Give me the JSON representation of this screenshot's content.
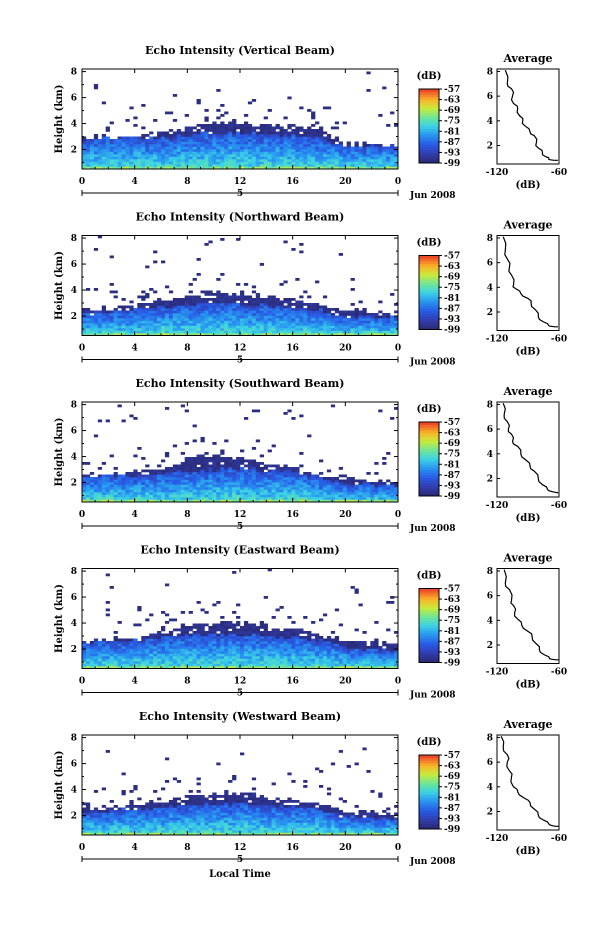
{
  "chart_data": [
    {
      "type": "heatmap",
      "title": "Echo Intensity (Vertical Beam)",
      "beam": "vertical",
      "ylabel": "Height (km)",
      "yticks": [
        "2",
        "4",
        "6",
        "8"
      ],
      "ylim": [
        0.5,
        8.2
      ],
      "xticks": [
        "0",
        "4",
        "8",
        "12",
        "16",
        "20",
        "0"
      ],
      "xlim": [
        0,
        24
      ],
      "date_tick": "5",
      "date_label": "Jun 2008",
      "colorbar": {
        "unit": "(dB)",
        "labels": [
          "-57",
          "-63",
          "-69",
          "-75",
          "-81",
          "-87",
          "-93",
          "-99"
        ],
        "range": [
          -99,
          -57
        ]
      },
      "layer": {
        "core_top_km": [
          2.8,
          3.0,
          3.1,
          3.0,
          3.2,
          3.4,
          3.5,
          3.3,
          3.2,
          3.0,
          2.4,
          2.3
        ],
        "upper_top_km": [
          2.9,
          3.0,
          3.1,
          3.3,
          3.8,
          4.2,
          4.1,
          4.0,
          3.9,
          3.7,
          2.6,
          2.4
        ],
        "hours": [
          0,
          2,
          4,
          6,
          8,
          10,
          12,
          14,
          16,
          18,
          20,
          24
        ]
      },
      "profile": {
        "title": "Average",
        "xlabel": "(dB)",
        "xticks": [
          "-120",
          "-60"
        ],
        "xlim": [
          -120,
          -60
        ],
        "yticks": [
          "2",
          "4",
          "6",
          "8"
        ],
        "ylim": [
          0.5,
          8.2
        ],
        "points": [
          [
            -112,
            8.1
          ],
          [
            -110,
            7.0
          ],
          [
            -106,
            6.6
          ],
          [
            -105,
            6.0
          ],
          [
            -104,
            5.4
          ],
          [
            -100,
            5.0
          ],
          [
            -98,
            4.4
          ],
          [
            -95,
            4.0
          ],
          [
            -93,
            3.6
          ],
          [
            -88,
            3.1
          ],
          [
            -84,
            2.8
          ],
          [
            -82,
            2.2
          ],
          [
            -80,
            1.8
          ],
          [
            -76,
            1.4
          ],
          [
            -73,
            1.1
          ],
          [
            -70,
            0.9
          ],
          [
            -65,
            0.8
          ],
          [
            -61,
            0.8
          ]
        ]
      }
    },
    {
      "type": "heatmap",
      "title": "Echo Intensity (Northward Beam)",
      "beam": "north",
      "ylabel": "Height (km)",
      "yticks": [
        "2",
        "4",
        "6",
        "8"
      ],
      "ylim": [
        0.5,
        8.2
      ],
      "xticks": [
        "0",
        "4",
        "8",
        "12",
        "16",
        "20",
        "0"
      ],
      "xlim": [
        0,
        24
      ],
      "date_tick": "5",
      "date_label": "Jun 2008",
      "colorbar": {
        "unit": "(dB)",
        "labels": [
          "-57",
          "-63",
          "-69",
          "-75",
          "-81",
          "-87",
          "-93",
          "-99"
        ],
        "range": [
          -99,
          -57
        ]
      },
      "layer": {
        "core_top_km": [
          2.3,
          2.4,
          2.6,
          2.8,
          3.0,
          3.1,
          3.0,
          2.9,
          2.8,
          2.6,
          2.1,
          2.0
        ],
        "upper_top_km": [
          2.5,
          2.6,
          2.9,
          3.3,
          3.7,
          3.9,
          3.8,
          3.6,
          3.4,
          3.0,
          2.6,
          2.4
        ],
        "hours": [
          0,
          2,
          4,
          6,
          8,
          10,
          12,
          14,
          16,
          18,
          20,
          24
        ]
      },
      "profile": {
        "title": "Average",
        "xlabel": "(dB)",
        "xticks": [
          "-120",
          "-60"
        ],
        "xlim": [
          -120,
          -60
        ],
        "yticks": [
          "2",
          "4",
          "6",
          "8"
        ],
        "ylim": [
          0.5,
          8.2
        ],
        "points": [
          [
            -114,
            8.1
          ],
          [
            -112,
            7.0
          ],
          [
            -110,
            6.3
          ],
          [
            -108,
            5.6
          ],
          [
            -106,
            5.0
          ],
          [
            -104,
            4.2
          ],
          [
            -102,
            3.9
          ],
          [
            -97,
            3.5
          ],
          [
            -90,
            3.1
          ],
          [
            -87,
            2.7
          ],
          [
            -83,
            2.2
          ],
          [
            -80,
            1.6
          ],
          [
            -75,
            1.2
          ],
          [
            -70,
            0.9
          ],
          [
            -64,
            0.8
          ],
          [
            -61,
            0.8
          ]
        ]
      }
    },
    {
      "type": "heatmap",
      "title": "Echo Intensity (Southward Beam)",
      "beam": "south",
      "ylabel": "Height (km)",
      "yticks": [
        "2",
        "4",
        "6",
        "8"
      ],
      "ylim": [
        0.5,
        8.2
      ],
      "xticks": [
        "0",
        "4",
        "8",
        "12",
        "16",
        "20",
        "0"
      ],
      "xlim": [
        0,
        24
      ],
      "date_tick": "5",
      "date_label": "Jun 2008",
      "colorbar": {
        "unit": "(dB)",
        "labels": [
          "-57",
          "-63",
          "-69",
          "-75",
          "-81",
          "-87",
          "-93",
          "-99"
        ],
        "range": [
          -99,
          -57
        ]
      },
      "layer": {
        "core_top_km": [
          2.5,
          2.6,
          2.7,
          2.8,
          3.0,
          3.1,
          3.2,
          3.0,
          2.9,
          2.6,
          2.0,
          1.9
        ],
        "upper_top_km": [
          2.6,
          2.7,
          2.9,
          3.0,
          4.0,
          4.2,
          4.0,
          3.5,
          3.2,
          2.8,
          2.4,
          2.2
        ],
        "hours": [
          0,
          2,
          4,
          6,
          8,
          10,
          12,
          14,
          16,
          18,
          20,
          24
        ]
      },
      "profile": {
        "title": "Average",
        "xlabel": "(dB)",
        "xticks": [
          "-120",
          "-60"
        ],
        "xlim": [
          -120,
          -60
        ],
        "yticks": [
          "2",
          "4",
          "6",
          "8"
        ],
        "ylim": [
          0.5,
          8.2
        ],
        "points": [
          [
            -114,
            8.1
          ],
          [
            -113,
            7.2
          ],
          [
            -110,
            6.6
          ],
          [
            -109,
            6.0
          ],
          [
            -106,
            5.6
          ],
          [
            -105,
            5.0
          ],
          [
            -100,
            4.6
          ],
          [
            -97,
            4.0
          ],
          [
            -92,
            3.5
          ],
          [
            -88,
            3.0
          ],
          [
            -84,
            2.6
          ],
          [
            -80,
            2.0
          ],
          [
            -76,
            1.5
          ],
          [
            -71,
            1.1
          ],
          [
            -65,
            0.9
          ],
          [
            -61,
            0.8
          ]
        ]
      }
    },
    {
      "type": "heatmap",
      "title": "Echo Intensity (Eastward Beam)",
      "beam": "east",
      "ylabel": "Height (km)",
      "yticks": [
        "2",
        "4",
        "6",
        "8"
      ],
      "ylim": [
        0.5,
        8.2
      ],
      "xticks": [
        "0",
        "4",
        "8",
        "12",
        "16",
        "20",
        "0"
      ],
      "xlim": [
        0,
        24
      ],
      "date_tick": "5",
      "date_label": "Jun 2008",
      "colorbar": {
        "unit": "(dB)",
        "labels": [
          "-57",
          "-63",
          "-69",
          "-75",
          "-81",
          "-87",
          "-93",
          "-99"
        ],
        "range": [
          -99,
          -57
        ]
      },
      "layer": {
        "core_top_km": [
          2.6,
          2.7,
          2.8,
          3.0,
          3.2,
          3.3,
          3.2,
          3.1,
          3.0,
          2.8,
          2.2,
          2.0
        ],
        "upper_top_km": [
          2.7,
          2.8,
          3.0,
          3.4,
          3.9,
          4.2,
          4.1,
          3.9,
          3.7,
          3.2,
          2.8,
          2.6
        ],
        "hours": [
          0,
          2,
          4,
          6,
          8,
          10,
          12,
          14,
          16,
          18,
          20,
          24
        ]
      },
      "profile": {
        "title": "Average",
        "xlabel": "(dB)",
        "xticks": [
          "-120",
          "-60"
        ],
        "xlim": [
          -120,
          -60
        ],
        "yticks": [
          "2",
          "4",
          "6",
          "8"
        ],
        "ylim": [
          0.5,
          8.2
        ],
        "points": [
          [
            -113,
            8.1
          ],
          [
            -112,
            7.0
          ],
          [
            -108,
            6.5
          ],
          [
            -106,
            5.6
          ],
          [
            -104,
            5.2
          ],
          [
            -103,
            4.6
          ],
          [
            -100,
            4.1
          ],
          [
            -96,
            3.6
          ],
          [
            -90,
            3.1
          ],
          [
            -86,
            2.7
          ],
          [
            -82,
            2.1
          ],
          [
            -79,
            1.6
          ],
          [
            -74,
            1.2
          ],
          [
            -69,
            0.9
          ],
          [
            -63,
            0.8
          ],
          [
            -60,
            0.8
          ]
        ]
      }
    },
    {
      "type": "heatmap",
      "title": "Echo Intensity (Westward Beam)",
      "beam": "west",
      "ylabel": "Height (km)",
      "yticks": [
        "2",
        "4",
        "6",
        "8"
      ],
      "ylim": [
        0.5,
        8.2
      ],
      "xticks": [
        "0",
        "4",
        "8",
        "12",
        "16",
        "20",
        "0"
      ],
      "xlim": [
        0,
        24
      ],
      "date_tick": "5",
      "date_label": "Jun 2008",
      "xlabel": "Local Time",
      "colorbar": {
        "unit": "(dB)",
        "labels": [
          "-57",
          "-63",
          "-69",
          "-75",
          "-81",
          "-87",
          "-93",
          "-99"
        ],
        "range": [
          -99,
          -57
        ]
      },
      "layer": {
        "core_top_km": [
          2.3,
          2.4,
          2.6,
          2.7,
          2.9,
          3.0,
          3.0,
          2.9,
          2.8,
          2.6,
          2.0,
          1.9
        ],
        "upper_top_km": [
          2.6,
          2.7,
          2.9,
          3.1,
          3.6,
          3.9,
          3.8,
          3.5,
          3.3,
          3.0,
          2.5,
          2.3
        ],
        "hours": [
          0,
          2,
          4,
          6,
          8,
          10,
          12,
          14,
          16,
          18,
          20,
          24
        ]
      },
      "profile": {
        "title": "Average",
        "xlabel": "(dB)",
        "xticks": [
          "-120",
          "-60"
        ],
        "xlim": [
          -120,
          -60
        ],
        "yticks": [
          "2",
          "4",
          "6",
          "8"
        ],
        "ylim": [
          0.5,
          8.2
        ],
        "points": [
          [
            -116,
            8.1
          ],
          [
            -114,
            7.2
          ],
          [
            -110,
            6.6
          ],
          [
            -110,
            6.0
          ],
          [
            -108,
            5.3
          ],
          [
            -106,
            4.8
          ],
          [
            -104,
            4.0
          ],
          [
            -100,
            3.6
          ],
          [
            -94,
            3.1
          ],
          [
            -88,
            2.7
          ],
          [
            -84,
            2.2
          ],
          [
            -80,
            1.7
          ],
          [
            -75,
            1.3
          ],
          [
            -70,
            1.0
          ],
          [
            -64,
            0.8
          ],
          [
            -60,
            0.8
          ]
        ]
      }
    }
  ]
}
